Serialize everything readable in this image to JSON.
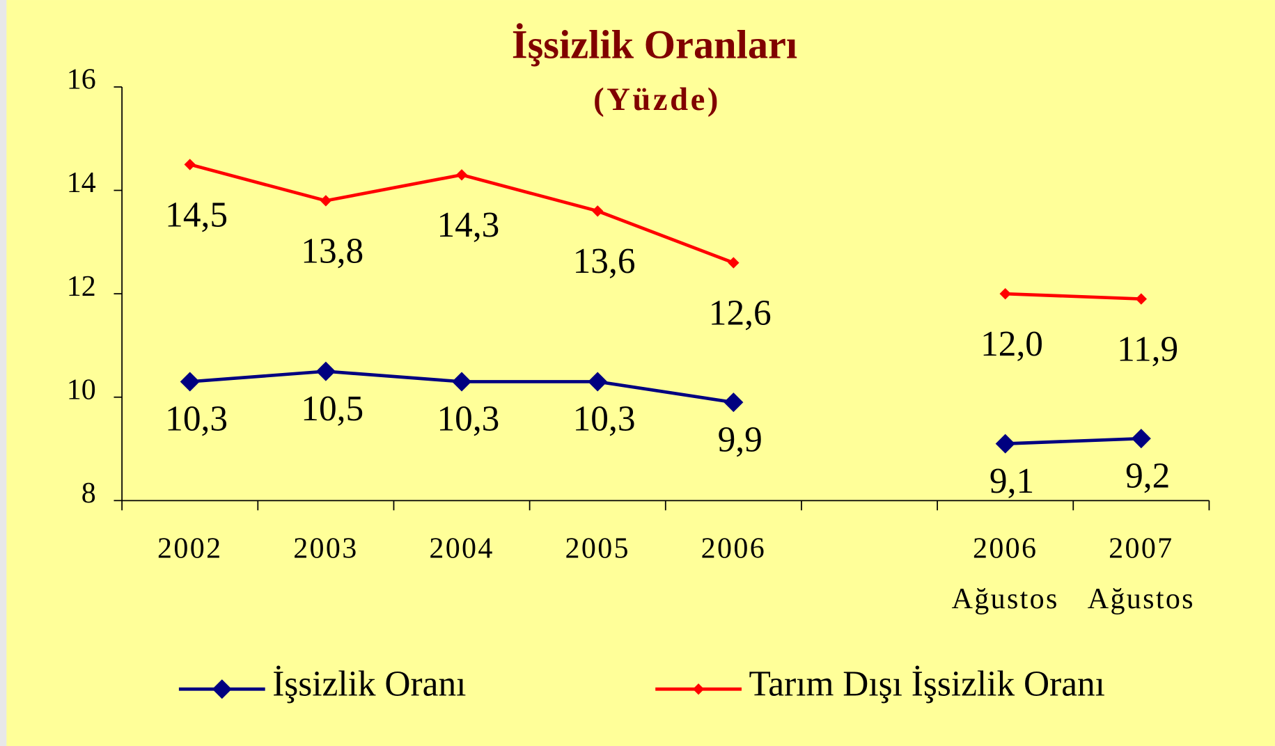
{
  "chart_data": {
    "type": "line",
    "title": "İşsizlik Oranları",
    "subtitle": "(Yüzde)",
    "categories": [
      "2002",
      "2003",
      "2004",
      "2005",
      "2006",
      null,
      "2006\nAğustos",
      "2007\nAğustos"
    ],
    "series": [
      {
        "name": "İşsizlik Oranı",
        "color": "#000080",
        "values": [
          10.3,
          10.5,
          10.3,
          10.3,
          9.9,
          null,
          9.1,
          9.2
        ],
        "value_labels": [
          "10,3",
          "10,5",
          "10,3",
          "10,3",
          "9,9",
          null,
          "9,1",
          "9,2"
        ]
      },
      {
        "name": "Tarım Dışı İşsizlik Oranı",
        "color": "#ff0000",
        "values": [
          14.5,
          13.8,
          14.3,
          13.6,
          12.6,
          null,
          12.0,
          11.9
        ],
        "value_labels": [
          "14,5",
          "13,8",
          "14,3",
          "13,6",
          "12,6",
          null,
          "12,0",
          "11,9"
        ]
      }
    ],
    "ylim": [
      8,
      16
    ],
    "yticks": [
      8,
      10,
      12,
      14,
      16
    ],
    "legend": "bottom"
  }
}
